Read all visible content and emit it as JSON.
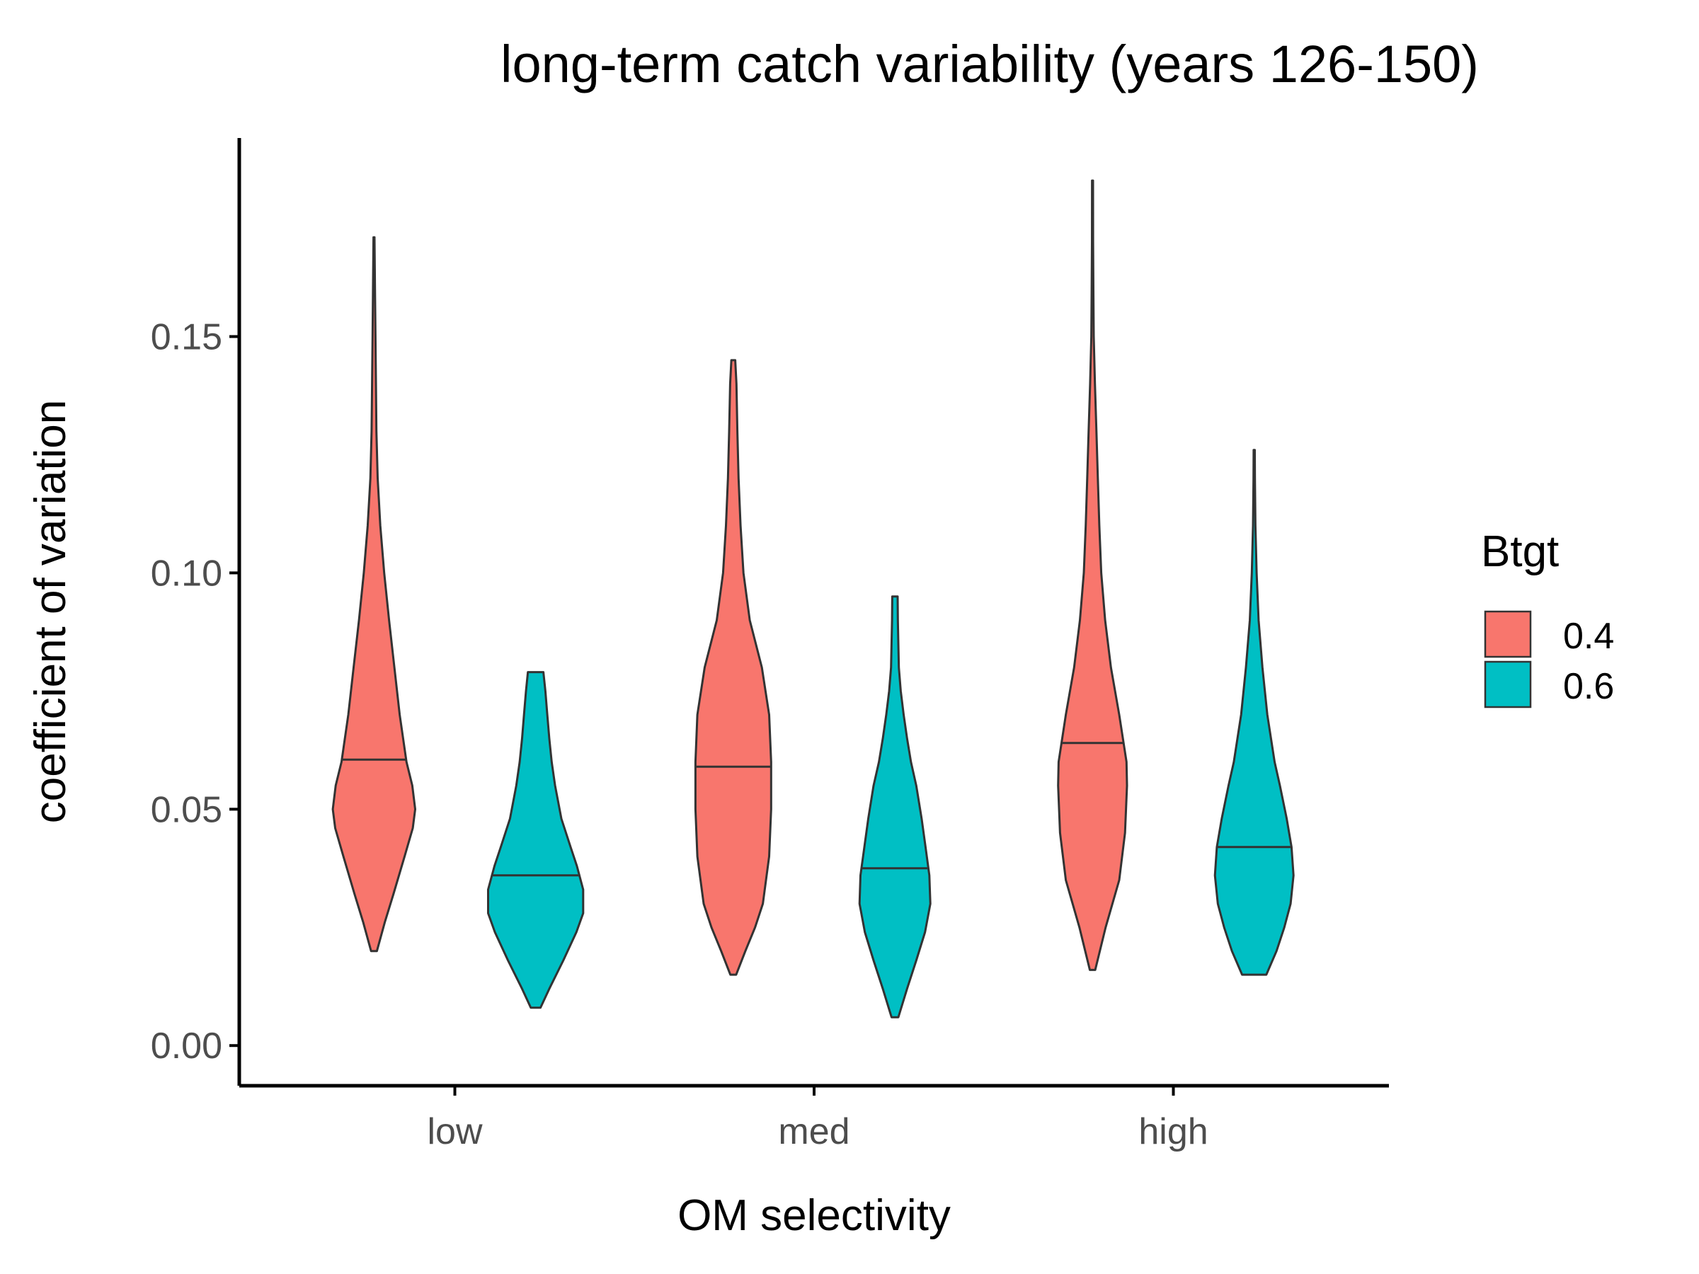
{
  "chart_data": {
    "type": "violin",
    "title": "long-term catch variability (years 126-150)",
    "xlabel": "OM selectivity",
    "ylabel": "coefficient of variation",
    "categories": [
      "low",
      "med",
      "high"
    ],
    "yticks": [
      "0.00",
      "0.05",
      "0.10",
      "0.15"
    ],
    "ylim": [
      -0.0085,
      0.192
    ],
    "grid": false,
    "legend": {
      "title": "Btgt",
      "position": "right",
      "entries": [
        "0.4",
        "0.6"
      ]
    },
    "colors": {
      "0.4": "#F8766D",
      "0.6": "#00BFC4",
      "outline": "#333333",
      "axis": "#000000"
    },
    "series": [
      {
        "name": "0.4",
        "violins": [
          {
            "category": "low",
            "min": 0.02,
            "max": 0.171,
            "median": 0.0605,
            "profile": [
              [
                0.02,
                0.06
              ],
              [
                0.026,
                0.22
              ],
              [
                0.032,
                0.4
              ],
              [
                0.04,
                0.63
              ],
              [
                0.046,
                0.8
              ],
              [
                0.05,
                0.85
              ],
              [
                0.055,
                0.79
              ],
              [
                0.06,
                0.67
              ],
              [
                0.07,
                0.53
              ],
              [
                0.08,
                0.42
              ],
              [
                0.09,
                0.31
              ],
              [
                0.1,
                0.21
              ],
              [
                0.11,
                0.13
              ],
              [
                0.12,
                0.075
              ],
              [
                0.13,
                0.05
              ],
              [
                0.15,
                0.03
              ],
              [
                0.16,
                0.02
              ],
              [
                0.171,
                0.01
              ]
            ]
          },
          {
            "category": "med",
            "min": 0.015,
            "max": 0.145,
            "median": 0.059,
            "profile": [
              [
                0.015,
                0.06
              ],
              [
                0.02,
                0.25
              ],
              [
                0.025,
                0.45
              ],
              [
                0.03,
                0.61
              ],
              [
                0.04,
                0.74
              ],
              [
                0.05,
                0.78
              ],
              [
                0.06,
                0.78
              ],
              [
                0.07,
                0.74
              ],
              [
                0.08,
                0.59
              ],
              [
                0.09,
                0.34
              ],
              [
                0.1,
                0.21
              ],
              [
                0.11,
                0.15
              ],
              [
                0.12,
                0.11
              ],
              [
                0.13,
                0.085
              ],
              [
                0.14,
                0.065
              ],
              [
                0.145,
                0.04
              ]
            ]
          },
          {
            "category": "high",
            "min": 0.016,
            "max": 0.183,
            "median": 0.064,
            "profile": [
              [
                0.016,
                0.055
              ],
              [
                0.025,
                0.27
              ],
              [
                0.035,
                0.55
              ],
              [
                0.045,
                0.67
              ],
              [
                0.055,
                0.71
              ],
              [
                0.06,
                0.7
              ],
              [
                0.07,
                0.55
              ],
              [
                0.08,
                0.38
              ],
              [
                0.09,
                0.26
              ],
              [
                0.1,
                0.18
              ],
              [
                0.11,
                0.14
              ],
              [
                0.12,
                0.11
              ],
              [
                0.13,
                0.08
              ],
              [
                0.14,
                0.05
              ],
              [
                0.15,
                0.025
              ],
              [
                0.16,
                0.018
              ],
              [
                0.17,
                0.012
              ],
              [
                0.183,
                0.01
              ]
            ]
          }
        ]
      },
      {
        "name": "0.6",
        "violins": [
          {
            "category": "low",
            "min": 0.008,
            "max": 0.079,
            "median": 0.036,
            "profile": [
              [
                0.008,
                0.1
              ],
              [
                0.012,
                0.28
              ],
              [
                0.018,
                0.57
              ],
              [
                0.024,
                0.84
              ],
              [
                0.028,
                0.98
              ],
              [
                0.033,
                0.98
              ],
              [
                0.038,
                0.85
              ],
              [
                0.042,
                0.72
              ],
              [
                0.048,
                0.53
              ],
              [
                0.055,
                0.4
              ],
              [
                0.06,
                0.33
              ],
              [
                0.065,
                0.28
              ],
              [
                0.07,
                0.24
              ],
              [
                0.075,
                0.2
              ],
              [
                0.079,
                0.16
              ]
            ]
          },
          {
            "category": "med",
            "min": 0.006,
            "max": 0.095,
            "median": 0.0375,
            "profile": [
              [
                0.006,
                0.07
              ],
              [
                0.012,
                0.25
              ],
              [
                0.018,
                0.44
              ],
              [
                0.024,
                0.62
              ],
              [
                0.03,
                0.73
              ],
              [
                0.036,
                0.71
              ],
              [
                0.042,
                0.63
              ],
              [
                0.048,
                0.55
              ],
              [
                0.055,
                0.44
              ],
              [
                0.06,
                0.33
              ],
              [
                0.065,
                0.25
              ],
              [
                0.07,
                0.18
              ],
              [
                0.075,
                0.12
              ],
              [
                0.08,
                0.08
              ],
              [
                0.09,
                0.06
              ],
              [
                0.095,
                0.055
              ]
            ]
          },
          {
            "category": "high",
            "min": 0.015,
            "max": 0.126,
            "median": 0.042,
            "profile": [
              [
                0.015,
                0.25
              ],
              [
                0.02,
                0.46
              ],
              [
                0.025,
                0.62
              ],
              [
                0.03,
                0.75
              ],
              [
                0.036,
                0.81
              ],
              [
                0.042,
                0.77
              ],
              [
                0.048,
                0.67
              ],
              [
                0.055,
                0.53
              ],
              [
                0.06,
                0.42
              ],
              [
                0.07,
                0.27
              ],
              [
                0.08,
                0.17
              ],
              [
                0.09,
                0.09
              ],
              [
                0.1,
                0.05
              ],
              [
                0.11,
                0.025
              ],
              [
                0.12,
                0.015
              ],
              [
                0.126,
                0.012
              ]
            ]
          }
        ]
      }
    ]
  }
}
